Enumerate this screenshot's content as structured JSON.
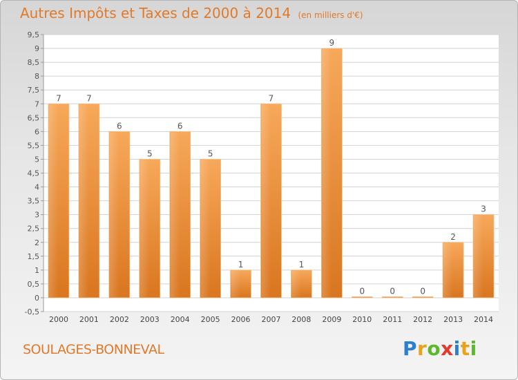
{
  "title": "Autres Impôts et Taxes de 2000 à 2014",
  "subtitle": "(en milliers d'€)",
  "place": "SOULAGES-BONNEVAL",
  "logo": {
    "letters": [
      "P",
      "r",
      "o",
      "x",
      "i",
      "t",
      "i"
    ]
  },
  "colors": {
    "accent": "#e07a2a",
    "bar_top": "#f7a85a",
    "bar_bottom": "#d9761f"
  },
  "chart_data": {
    "type": "bar",
    "title": "Autres Impôts et Taxes de 2000 à 2014",
    "subtitle": "(en milliers d'€)",
    "categories": [
      "2000",
      "2001",
      "2002",
      "2003",
      "2004",
      "2005",
      "2006",
      "2007",
      "2008",
      "2009",
      "2010",
      "2011",
      "2012",
      "2013",
      "2014"
    ],
    "values": [
      7,
      7,
      6,
      5,
      6,
      5,
      1,
      7,
      1,
      9,
      0,
      0,
      0,
      2,
      3
    ],
    "data_labels": [
      "7",
      "7",
      "6",
      "5",
      "6",
      "5",
      "1",
      "7",
      "1",
      "9",
      "0",
      "0",
      "0",
      "2",
      "3"
    ],
    "ylim": [
      -0.5,
      9.5
    ],
    "yticks": [
      -0.5,
      0,
      0.5,
      1,
      1.5,
      2,
      2.5,
      3,
      3.5,
      4,
      4.5,
      5,
      5.5,
      6,
      6.5,
      7,
      7.5,
      8,
      8.5,
      9,
      9.5
    ],
    "ytick_labels": [
      "-0,5",
      "0",
      "0,5",
      "1",
      "1,5",
      "2",
      "2,5",
      "3",
      "3,5",
      "4",
      "4,5",
      "5",
      "5,5",
      "6",
      "6,5",
      "7",
      "7,5",
      "8",
      "8,5",
      "9",
      "9,5"
    ],
    "grid": true,
    "xlabel": "",
    "ylabel": ""
  }
}
